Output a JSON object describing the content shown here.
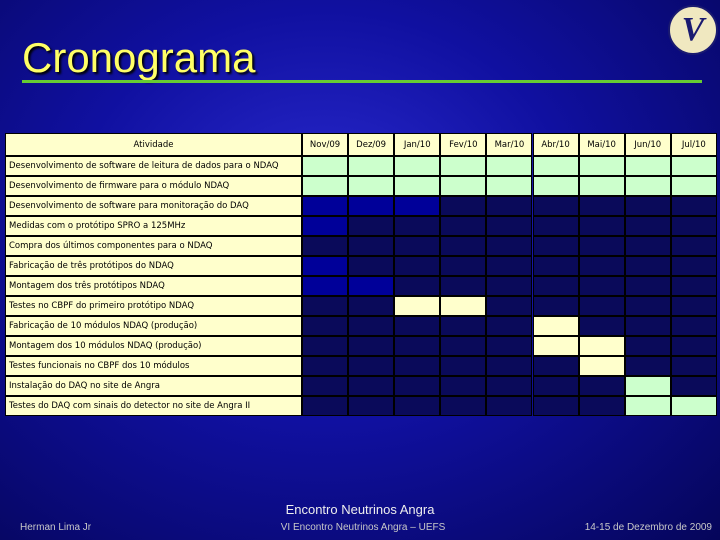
{
  "header": {
    "title": "Cronograma",
    "logo": "V"
  },
  "table": {
    "columns": [
      "Atividade",
      "Nov/09",
      "Dez/09",
      "Jan/10",
      "Fev/10",
      "Mar/10",
      "Abr/10",
      "Mai/10",
      "Jun/10",
      "Jul/10"
    ],
    "rows": [
      {
        "activity": "Desenvolvimento de software de leitura de dados para o NDAQ",
        "cells": [
          "#ccffcc",
          "#ccffcc",
          "#ccffcc",
          "#ccffcc",
          "#ccffcc",
          "#ccffcc",
          "#ccffcc",
          "#ccffcc",
          "#ccffcc"
        ]
      },
      {
        "activity": "Desenvolvimento de firmware para o módulo NDAQ",
        "cells": [
          "#ccffcc",
          "#ccffcc",
          "#ccffcc",
          "#ccffcc",
          "#ccffcc",
          "#ccffcc",
          "#ccffcc",
          "#ccffcc",
          "#ccffcc"
        ]
      },
      {
        "activity": "Desenvolvimento de software para monitoração do DAQ",
        "cells": [
          "#000099",
          "#000099",
          "#000099",
          "#0a0a5a",
          "#0a0a5a",
          "#0a0a5a",
          "#0a0a5a",
          "#0a0a5a",
          "#0a0a5a"
        ]
      },
      {
        "activity": "Medidas com o protótipo SPRO a 125MHz",
        "cells": [
          "#000099",
          "#0a0a5a",
          "#0a0a5a",
          "#0a0a5a",
          "#0a0a5a",
          "#0a0a5a",
          "#0a0a5a",
          "#0a0a5a",
          "#0a0a5a"
        ]
      },
      {
        "activity": "Compra dos últimos componentes para o NDAQ",
        "cells": [
          "#0a0a5a",
          "#0a0a5a",
          "#0a0a5a",
          "#0a0a5a",
          "#0a0a5a",
          "#0a0a5a",
          "#0a0a5a",
          "#0a0a5a",
          "#0a0a5a"
        ]
      },
      {
        "activity": "Fabricação de três protótipos do NDAQ",
        "cells": [
          "#000099",
          "#0a0a5a",
          "#0a0a5a",
          "#0a0a5a",
          "#0a0a5a",
          "#0a0a5a",
          "#0a0a5a",
          "#0a0a5a",
          "#0a0a5a"
        ]
      },
      {
        "activity": "Montagem dos três protótipos NDAQ",
        "cells": [
          "#000099",
          "#000099",
          "#0a0a5a",
          "#0a0a5a",
          "#0a0a5a",
          "#0a0a5a",
          "#0a0a5a",
          "#0a0a5a",
          "#0a0a5a"
        ]
      },
      {
        "activity": "Testes no CBPF do primeiro protótipo NDAQ",
        "cells": [
          "#0a0a5a",
          "#0a0a5a",
          "#ffffcc",
          "#ffffcc",
          "#0a0a5a",
          "#0a0a5a",
          "#0a0a5a",
          "#0a0a5a",
          "#0a0a5a"
        ]
      },
      {
        "activity": "Fabricação de 10 módulos NDAQ (produção)",
        "cells": [
          "#0a0a5a",
          "#0a0a5a",
          "#0a0a5a",
          "#0a0a5a",
          "#0a0a5a",
          "#ffffcc",
          "#0a0a5a",
          "#0a0a5a",
          "#0a0a5a"
        ]
      },
      {
        "activity": "Montagem dos 10 módulos NDAQ (produção)",
        "cells": [
          "#0a0a5a",
          "#0a0a5a",
          "#0a0a5a",
          "#0a0a5a",
          "#0a0a5a",
          "#ffffcc",
          "#ffffcc",
          "#0a0a5a",
          "#0a0a5a"
        ]
      },
      {
        "activity": "Testes funcionais no CBPF dos 10 módulos",
        "cells": [
          "#0a0a5a",
          "#0a0a5a",
          "#0a0a5a",
          "#0a0a5a",
          "#0a0a5a",
          "#0a0a5a",
          "#ffffcc",
          "#0a0a5a",
          "#0a0a5a"
        ]
      },
      {
        "activity": "Instalação do DAQ no site de Angra",
        "cells": [
          "#0a0a5a",
          "#0a0a5a",
          "#0a0a5a",
          "#0a0a5a",
          "#0a0a5a",
          "#0a0a5a",
          "#0a0a5a",
          "#ccffcc",
          "#0a0a5a"
        ]
      },
      {
        "activity": "Testes do DAQ com sinais do detector no site de Angra II",
        "cells": [
          "#0a0a5a",
          "#0a0a5a",
          "#0a0a5a",
          "#0a0a5a",
          "#0a0a5a",
          "#0a0a5a",
          "#0a0a5a",
          "#ccffcc",
          "#ccffcc"
        ]
      }
    ]
  },
  "footer": {
    "event": "Encontro Neutrinos Angra",
    "author": "Herman Lima Jr",
    "conference": "VI Encontro Neutrinos Angra – UEFS",
    "date": "14-15 de Dezembro de 2009"
  }
}
